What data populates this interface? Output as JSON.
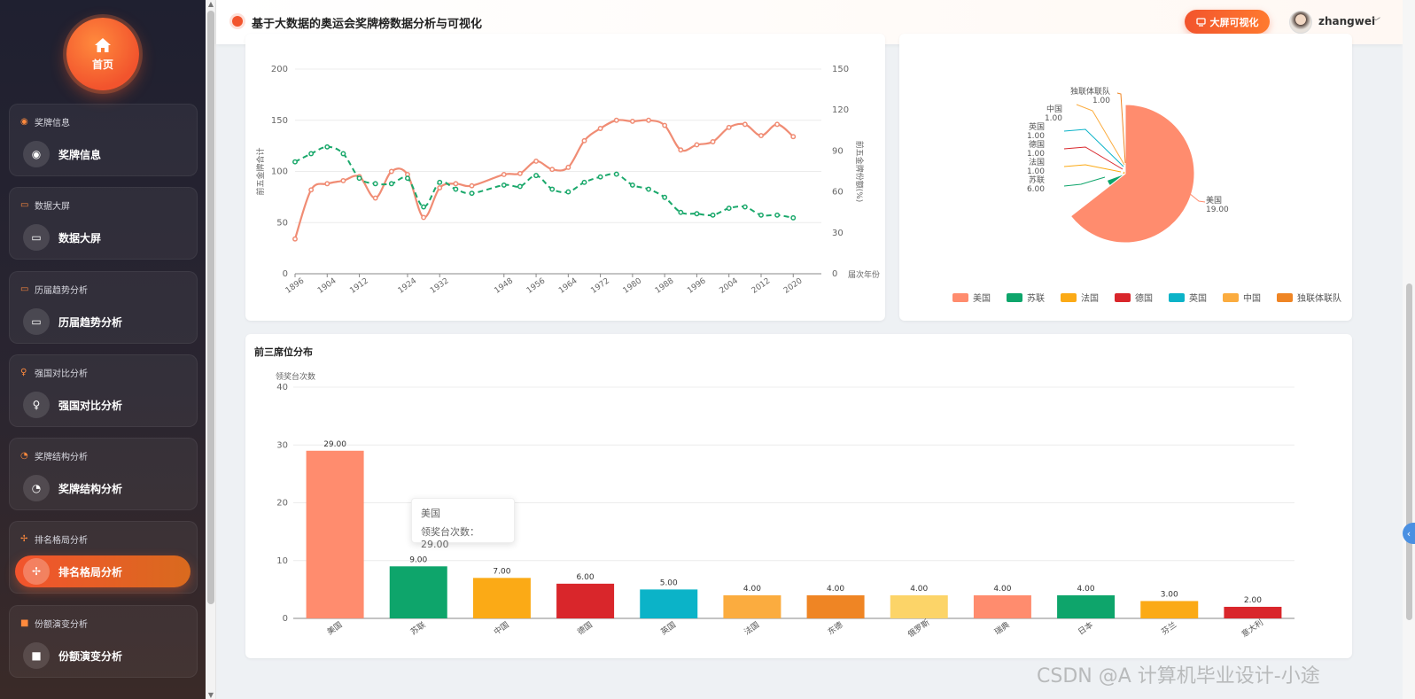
{
  "sidebar": {
    "home_label": "首页",
    "groups": [
      {
        "title": "奖牌信息",
        "item": "奖牌信息",
        "icon": "medal-icon",
        "glyph": "◉"
      },
      {
        "title": "数据大屏",
        "item": "数据大屏",
        "icon": "screen-icon",
        "glyph": "▭"
      },
      {
        "title": "历届趋势分析",
        "item": "历届趋势分析",
        "icon": "screen-icon",
        "glyph": "▭"
      },
      {
        "title": "强国对比分析",
        "item": "强国对比分析",
        "icon": "trophy-icon",
        "glyph": "♀"
      },
      {
        "title": "奖牌结构分析",
        "item": "奖牌结构分析",
        "icon": "pie-icon",
        "glyph": "◔"
      },
      {
        "title": "排名格局分析",
        "item": "排名格局分析",
        "icon": "ranking-icon",
        "glyph": "✢",
        "active": true
      },
      {
        "title": "份额演变分析",
        "item": "份额演变分析",
        "icon": "share-icon",
        "glyph": "■"
      }
    ]
  },
  "header": {
    "title": "基于大数据的奥运会奖牌榜数据分析与可视化",
    "big_screen_label": "大屏可视化",
    "username": "zhangwei"
  },
  "colors": {
    "accent": "#f2542d",
    "line_gold": "#f08c74",
    "line_share": "#1aa86b",
    "palette": [
      "#ff8c6e",
      "#0ea56b",
      "#fbaa16",
      "#d9262b",
      "#0bb3c8",
      "#fbac3f",
      "#ef8524",
      "#fcd468",
      "#ff8c6e",
      "#0ea56b",
      "#fbaa16",
      "#d9262b"
    ]
  },
  "chart_data": [
    {
      "type": "line",
      "x": [
        1896,
        1900,
        1904,
        1908,
        1912,
        1916,
        1920,
        1924,
        1928,
        1932,
        1936,
        1940,
        1948,
        1952,
        1956,
        1960,
        1964,
        1968,
        1972,
        1976,
        1980,
        1984,
        1988,
        1992,
        1996,
        2000,
        2004,
        2008,
        2012,
        2016,
        2020,
        2024
      ],
      "xticks": [
        "1896",
        "1904",
        "1912",
        "1924",
        "1932",
        "1948",
        "1956",
        "1964",
        "1972",
        "1980",
        "1988",
        "1996",
        "2004",
        "2012",
        "2020"
      ],
      "ylabel": "前五金牌合计",
      "ylabel_right": "前五金牌份额(%)",
      "xlabel_right": "届次年份",
      "ylim": [
        0,
        200
      ],
      "yticks": [
        0,
        50,
        100,
        150,
        200
      ],
      "ylim_right": [
        0,
        150
      ],
      "yticks_right": [
        0,
        30,
        60,
        90,
        120,
        150
      ],
      "series": [
        {
          "values": [
            34,
            82,
            88,
            91,
            95,
            74,
            100,
            97,
            55,
            84,
            88,
            86,
            97,
            98,
            110,
            102,
            104,
            130,
            142,
            150,
            149,
            150,
            145,
            121,
            126,
            129,
            143,
            146,
            135,
            146,
            134,
            0
          ]
        },
        {
          "values": [
            82,
            88,
            93,
            88,
            70,
            66,
            66,
            70,
            49,
            67,
            62,
            59,
            65,
            64,
            72,
            62,
            60,
            67,
            71,
            73,
            65,
            62,
            56,
            45,
            44,
            43,
            48,
            49,
            43,
            43,
            41,
            0
          ]
        }
      ]
    },
    {
      "type": "pie",
      "categories": [
        "美国",
        "苏联",
        "法国",
        "德国",
        "英国",
        "中国",
        "独联体联队"
      ],
      "values": [
        19,
        6,
        1,
        1,
        1,
        1,
        1
      ],
      "labels": [
        "19.00",
        "6.00",
        "1.00",
        "1.00",
        "1.00",
        "1.00",
        "1.00"
      ],
      "legend": "bottom"
    },
    {
      "type": "bar",
      "title": "前三席位分布",
      "ylabel": "领奖台次数",
      "ylim": [
        0,
        40
      ],
      "yticks": [
        0,
        10,
        20,
        30,
        40
      ],
      "categories": [
        "美国",
        "苏联",
        "中国",
        "德国",
        "英国",
        "法国",
        "东德",
        "俄罗斯",
        "瑞典",
        "日本",
        "芬兰",
        "意大利"
      ],
      "values": [
        29,
        9,
        7,
        6,
        5,
        4,
        4,
        4,
        4,
        4,
        3,
        2
      ],
      "labels": [
        "29.00",
        "9.00",
        "7.00",
        "6.00",
        "5.00",
        "4.00",
        "4.00",
        "4.00",
        "4.00",
        "4.00",
        "3.00",
        "2.00"
      ]
    }
  ],
  "tooltip": {
    "name": "美国",
    "text": "领奖台次数：29.00"
  },
  "watermark": "CSDN @A 计算机毕业设计-小途"
}
